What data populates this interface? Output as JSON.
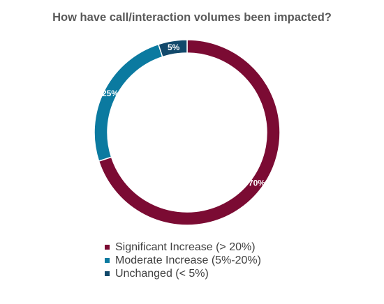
{
  "chart_data": {
    "type": "pie",
    "title": "How have call/interaction volumes been impacted?",
    "donut": true,
    "legend_position": "bottom",
    "slices": [
      {
        "label": "Significant Increase (> 20%)",
        "value": 70,
        "display": "70%",
        "color": "#7b0b33"
      },
      {
        "label": "Moderate Increase (5%-20%)",
        "value": 25,
        "display": "25%",
        "color": "#0b7aa0"
      },
      {
        "label": "Unchanged (< 5%)",
        "value": 5,
        "display": "5%",
        "color": "#12496b"
      }
    ]
  }
}
